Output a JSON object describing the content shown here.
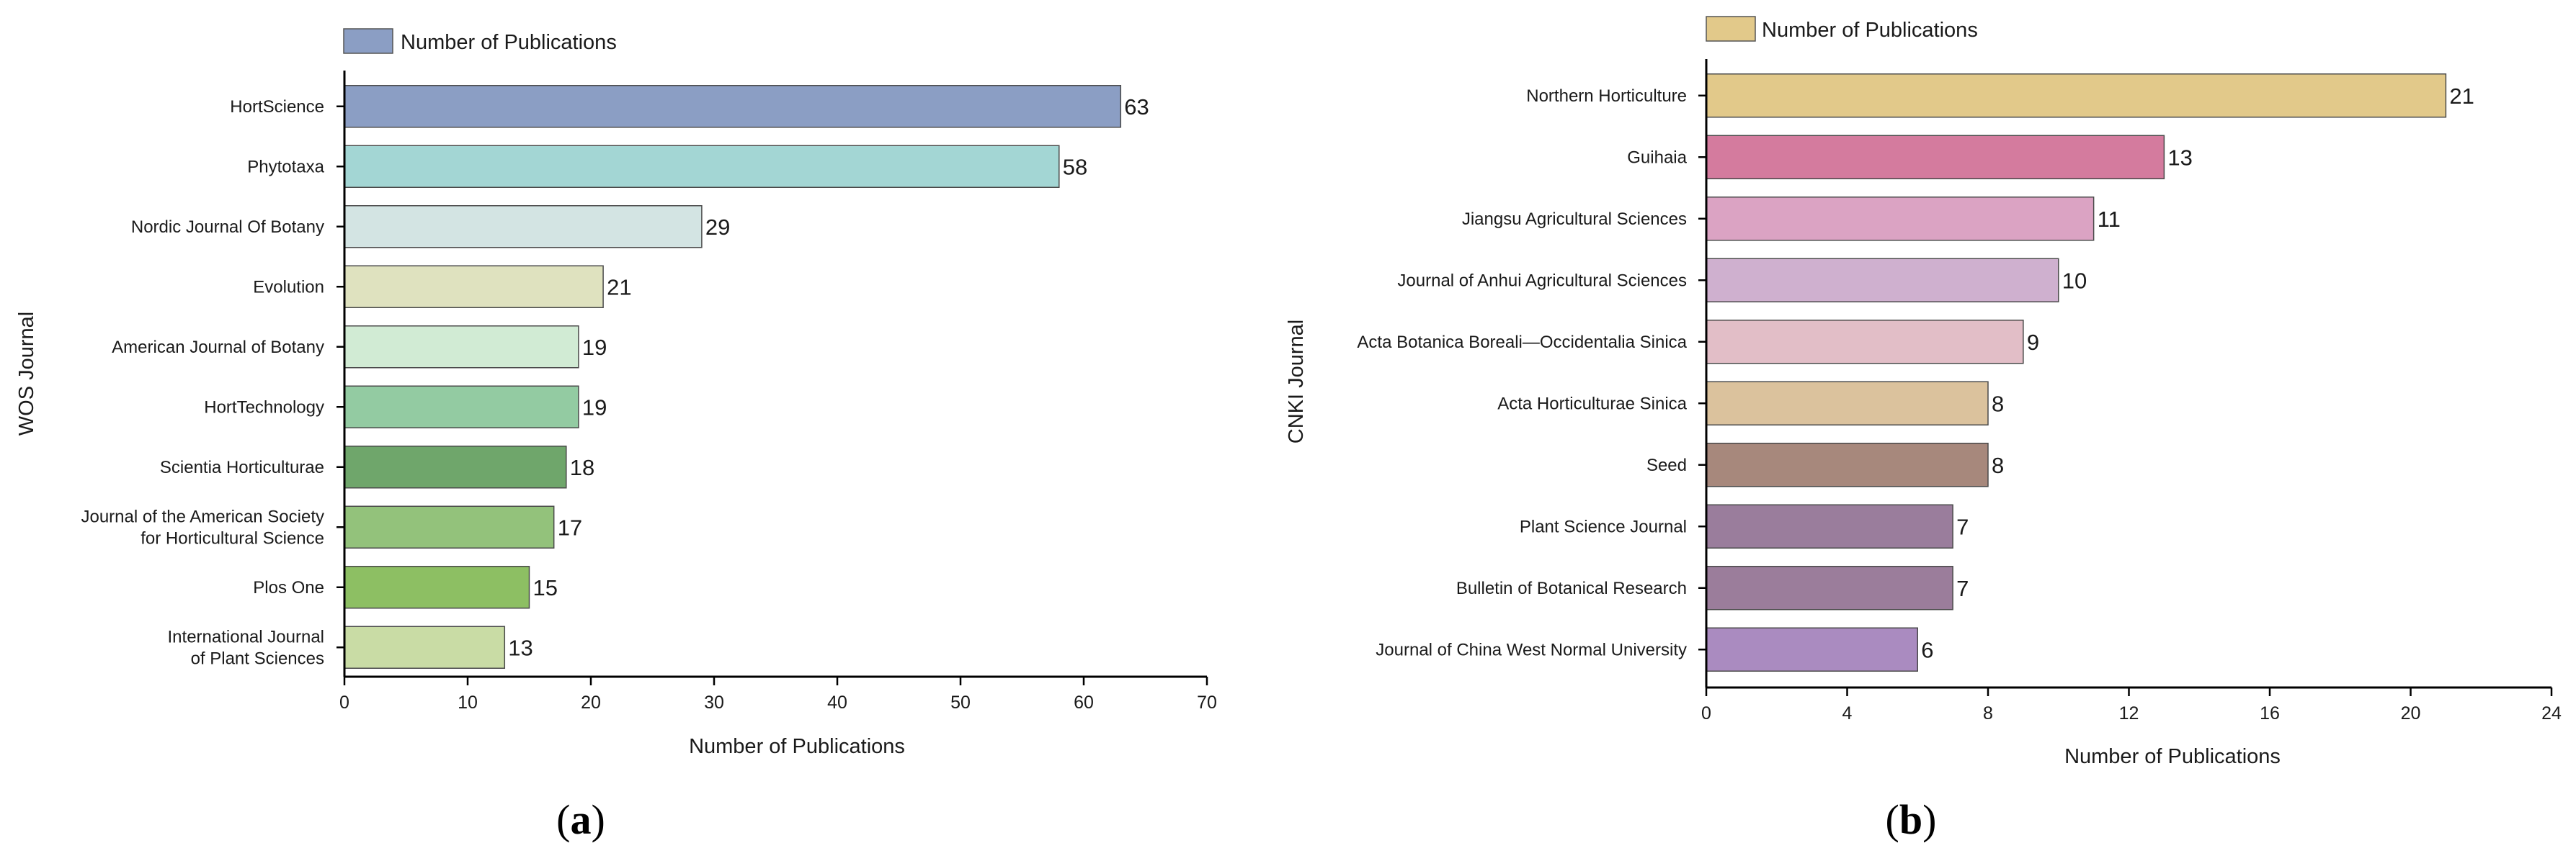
{
  "chart_data": [
    {
      "type": "bar",
      "orientation": "horizontal",
      "panel_label": "a",
      "categories": [
        "HortScience",
        "Phytotaxa",
        "Nordic Journal Of Botany",
        "Evolution",
        "American Journal of Botany",
        "HortTechnology",
        "Scientia Horticulturae",
        "Journal of the American Society\nfor Horticultural Science",
        "Plos One",
        "International Journal\nof Plant Sciences"
      ],
      "values": [
        63,
        58,
        29,
        21,
        19,
        19,
        18,
        17,
        15,
        13
      ],
      "colors": [
        "#8b9ec4",
        "#a3d6d4",
        "#d3e4e3",
        "#dfe2bf",
        "#d1ebd4",
        "#93cba2",
        "#6fa66b",
        "#93c27b",
        "#8dbf63",
        "#c9dca5"
      ],
      "legend": "Number of Publications",
      "legend_color": "#8b9ec4",
      "legend_position": "top",
      "xlabel": "Number of Publications",
      "ylabel": "WOS Journal",
      "xlim": [
        0,
        70
      ],
      "xticks": [
        0,
        10,
        20,
        30,
        40,
        50,
        60,
        70
      ],
      "grid": false
    },
    {
      "type": "bar",
      "orientation": "horizontal",
      "panel_label": "b",
      "categories": [
        "Northern Horticulture",
        "Guihaia",
        "Jiangsu Agricultural Sciences",
        "Journal of Anhui Agricultural Sciences",
        "Acta Botanica Boreali—Occidentalia Sinica",
        "Acta Horticulturae Sinica",
        "Seed",
        "Plant Science Journal",
        "Bulletin of Botanical Research",
        "Journal of China West Normal University"
      ],
      "values": [
        21,
        13,
        11,
        10,
        9,
        8,
        8,
        7,
        7,
        6
      ],
      "colors": [
        "#e2c98a",
        "#d47b9e",
        "#dba3c3",
        "#cfb0cf",
        "#e2bec7",
        "#dbc29d",
        "#a7887c",
        "#9a7d9c",
        "#9b7d9b",
        "#aa8bc0"
      ],
      "legend": "Number of Publications",
      "legend_color": "#e2c98a",
      "legend_position": "top",
      "xlabel": "Number of Publications",
      "ylabel": "CNKI Journal",
      "xlim": [
        0,
        24
      ],
      "xticks": [
        0,
        4,
        8,
        12,
        16,
        20,
        24
      ],
      "grid": false
    }
  ]
}
